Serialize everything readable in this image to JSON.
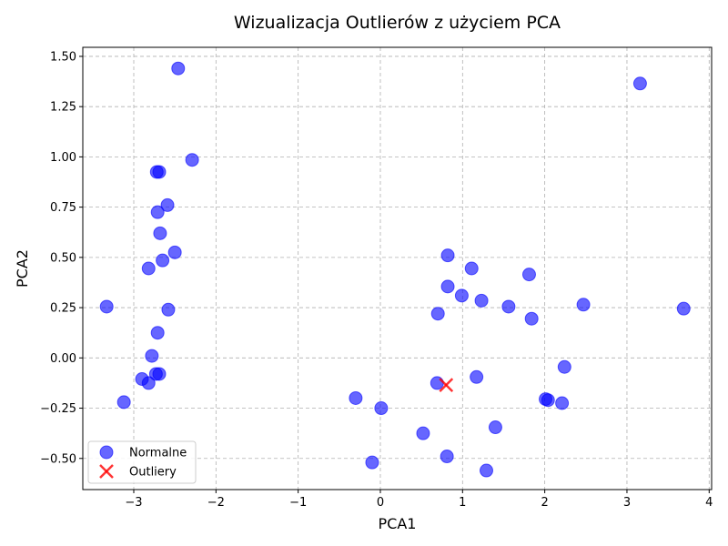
{
  "chart_data": {
    "type": "scatter",
    "title": "Wizualizacja Outlierów z użyciem PCA",
    "xlabel": "PCA1",
    "ylabel": "PCA2",
    "xlim": [
      -3.62,
      4.03
    ],
    "ylim": [
      -0.655,
      1.545
    ],
    "xticks": [
      -3,
      -2,
      -1,
      0,
      1,
      2,
      3,
      4
    ],
    "yticks": [
      -0.5,
      -0.25,
      0.0,
      0.25,
      0.5,
      0.75,
      1.0,
      1.25,
      1.5
    ],
    "xtick_labels": [
      "−3",
      "−2",
      "−1",
      "0",
      "1",
      "2",
      "3",
      "4"
    ],
    "ytick_labels": [
      "−0.50",
      "−0.25",
      "0.00",
      "0.25",
      "0.50",
      "0.75",
      "1.00",
      "1.25",
      "1.50"
    ],
    "grid": true,
    "legend_position": "lower-left",
    "series": [
      {
        "name": "Normalne",
        "marker": "circle",
        "color": "#0000ff",
        "points": [
          [
            -2.46,
            1.44
          ],
          [
            3.16,
            1.365
          ],
          [
            -2.29,
            0.985
          ],
          [
            -2.72,
            0.925
          ],
          [
            -2.69,
            0.925
          ],
          [
            -2.59,
            0.76
          ],
          [
            -2.71,
            0.725
          ],
          [
            -2.68,
            0.62
          ],
          [
            -2.5,
            0.525
          ],
          [
            -2.65,
            0.485
          ],
          [
            -2.82,
            0.445
          ],
          [
            -3.33,
            0.255
          ],
          [
            -2.58,
            0.24
          ],
          [
            -2.71,
            0.125
          ],
          [
            -2.78,
            0.01
          ],
          [
            -2.73,
            -0.08
          ],
          [
            -2.69,
            -0.08
          ],
          [
            -2.9,
            -0.105
          ],
          [
            -2.82,
            -0.125
          ],
          [
            -3.12,
            -0.22
          ],
          [
            0.82,
            0.51
          ],
          [
            1.11,
            0.445
          ],
          [
            1.81,
            0.415
          ],
          [
            0.82,
            0.355
          ],
          [
            0.99,
            0.31
          ],
          [
            1.23,
            0.285
          ],
          [
            1.56,
            0.255
          ],
          [
            2.47,
            0.265
          ],
          [
            3.69,
            0.245
          ],
          [
            0.7,
            0.22
          ],
          [
            1.84,
            0.195
          ],
          [
            2.24,
            -0.045
          ],
          [
            1.17,
            -0.095
          ],
          [
            0.69,
            -0.125
          ],
          [
            -0.3,
            -0.2
          ],
          [
            2.01,
            -0.205
          ],
          [
            2.04,
            -0.21
          ],
          [
            2.21,
            -0.225
          ],
          [
            0.01,
            -0.25
          ],
          [
            1.4,
            -0.345
          ],
          [
            0.52,
            -0.375
          ],
          [
            -0.1,
            -0.52
          ],
          [
            0.81,
            -0.49
          ],
          [
            1.29,
            -0.56
          ]
        ]
      },
      {
        "name": "Outliery",
        "marker": "x",
        "color": "#ff0000",
        "points": [
          [
            0.8,
            -0.135
          ]
        ]
      }
    ]
  }
}
